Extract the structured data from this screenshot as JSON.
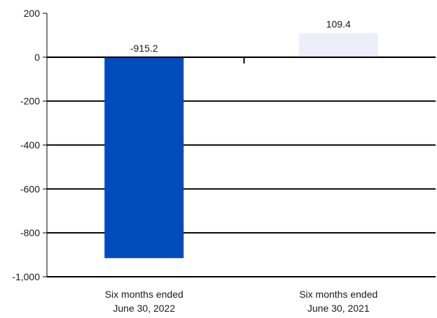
{
  "chart_data": {
    "type": "bar",
    "title": "",
    "xlabel": "",
    "ylabel": "",
    "categories": [
      [
        "Six months ended",
        "June 30, 2022"
      ],
      [
        "Six months ended",
        "June 30, 2021"
      ]
    ],
    "values": [
      -915.2,
      109.4
    ],
    "value_labels": [
      "-915.2",
      "109.4"
    ],
    "bar_colors": [
      "#004cbc",
      "#eceefa"
    ],
    "ylim": [
      -1000,
      200
    ],
    "yticks": [
      200,
      0,
      -200,
      -400,
      -600,
      -800,
      -1000
    ],
    "ytick_labels": [
      "200",
      "0",
      "-200",
      "-400",
      "-600",
      "-800",
      "-1,000"
    ],
    "grid": true,
    "legend": "none"
  }
}
